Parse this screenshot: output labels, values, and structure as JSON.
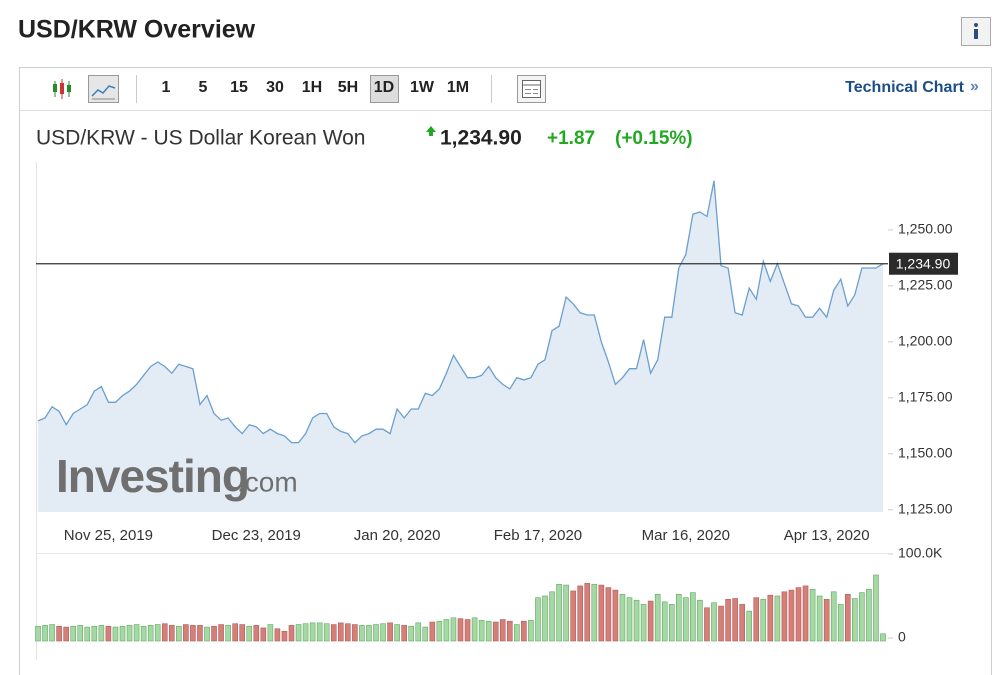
{
  "header": {
    "title": "USD/KRW Overview"
  },
  "toolbar": {
    "intervals": [
      "1",
      "5",
      "15",
      "30",
      "1H",
      "5H",
      "1D",
      "1W",
      "1M"
    ],
    "selected": "1D",
    "link": "Technical Chart",
    "link_arrow": "»"
  },
  "quote": {
    "name": "USD/KRW - US Dollar Korean Won",
    "price": "1,234.90",
    "change": "+1.87",
    "change_pct": "(+0.15%)"
  },
  "watermark": {
    "brand": "Investing",
    "suffix": ".com"
  },
  "chart_data": [
    {
      "type": "area",
      "color": "#6a9fd0",
      "fill": "#e3ecf4",
      "categories": [
        null,
        null,
        null,
        null,
        null,
        null,
        null,
        null,
        null,
        null,
        "Nov 25, 2019",
        null,
        null,
        null,
        null,
        null,
        null,
        null,
        null,
        null,
        null,
        null,
        null,
        null,
        null,
        null,
        null,
        null,
        null,
        null,
        null,
        "Dec 23, 2019",
        null,
        null,
        null,
        null,
        null,
        null,
        null,
        null,
        null,
        null,
        null,
        null,
        null,
        null,
        null,
        null,
        null,
        null,
        null,
        "Jan 20, 2020",
        null,
        null,
        null,
        null,
        null,
        null,
        null,
        null,
        null,
        null,
        null,
        null,
        null,
        null,
        null,
        null,
        null,
        null,
        null,
        "Feb 17, 2020",
        null,
        null,
        null,
        null,
        null,
        null,
        null,
        null,
        null,
        null,
        null,
        null,
        null,
        null,
        null,
        null,
        null,
        null,
        null,
        null,
        "Mar 16, 2020",
        null,
        null,
        null,
        null,
        null,
        null,
        null,
        null,
        null,
        null,
        null,
        null,
        null,
        null,
        null,
        null,
        null,
        null,
        null,
        "Apr 13, 2020",
        null,
        null,
        null,
        null,
        null,
        null,
        null,
        null
      ],
      "values": [
        1164.7,
        1166,
        1171,
        1169,
        1163,
        1168,
        1170,
        1172,
        1178,
        1180,
        1173,
        1173,
        1176,
        1178,
        1181,
        1185,
        1189,
        1191,
        1189,
        1186,
        1190,
        1189,
        1188,
        1172,
        1176,
        1168,
        1165,
        1166,
        1162,
        1159,
        1163,
        1162,
        1159,
        1161,
        1159,
        1158,
        1155,
        1155,
        1159,
        1166,
        1168,
        1168,
        1162,
        1160,
        1159,
        1155,
        1158,
        1159,
        1161,
        1161,
        1159,
        1170,
        1166,
        1170,
        1170,
        1177,
        1176,
        1179,
        1186,
        1194,
        1189,
        1184,
        1184,
        1185,
        1189,
        1184,
        1181,
        1179,
        1184,
        1183,
        1184,
        1190,
        1192,
        1205,
        1207,
        1220,
        1217,
        1213,
        1212,
        1212,
        1200,
        1191,
        1181,
        1184,
        1188,
        1188,
        1201,
        1186,
        1192,
        1211,
        1211,
        1233,
        1239,
        1257,
        1258,
        1256,
        1272,
        1234,
        1233,
        1213,
        1212,
        1224,
        1219,
        1236,
        1227,
        1235,
        1226,
        1217,
        1216,
        1211,
        1211,
        1215,
        1211,
        1223,
        1228,
        1216,
        1221,
        1233,
        1233,
        1233,
        1234.9
      ],
      "ylim": [
        1124,
        1279
      ],
      "yticks": [
        {
          "value": 1125,
          "label": "1,125.00"
        },
        {
          "value": 1150,
          "label": "1,150.00"
        },
        {
          "value": 1175,
          "label": "1,175.00"
        },
        {
          "value": 1200,
          "label": "1,200.00"
        },
        {
          "value": 1225,
          "label": "1,225.00"
        },
        {
          "value": 1250,
          "label": "1,250.00"
        }
      ],
      "last_price": {
        "value": 1234.9,
        "label": "1,234.90"
      }
    },
    {
      "type": "bar",
      "up_color": "#a6d8a6",
      "down_color": "#d47f7a",
      "values": [
        14,
        15,
        16,
        14,
        13,
        14,
        15,
        13,
        14,
        15,
        14,
        13,
        14,
        15,
        16,
        14,
        15,
        16,
        17,
        15,
        14,
        16,
        15,
        15,
        13,
        14,
        16,
        15,
        17,
        16,
        14,
        15,
        12,
        16,
        11,
        8,
        15,
        16,
        17,
        18,
        18,
        17,
        16,
        18,
        17,
        16,
        15,
        15,
        16,
        17,
        18,
        16,
        15,
        14,
        18,
        13,
        19,
        20,
        22,
        24,
        23,
        22,
        24,
        21,
        20,
        19,
        22,
        20,
        16,
        20,
        21,
        48,
        50,
        55,
        64,
        63,
        56,
        62,
        65,
        64,
        63,
        60,
        57,
        52,
        48,
        45,
        40,
        44,
        52,
        43,
        40,
        52,
        48,
        54,
        45,
        36,
        42,
        38,
        46,
        47,
        40,
        32,
        48,
        46,
        51,
        50,
        55,
        57,
        60,
        62,
        58,
        50,
        46,
        55,
        40,
        52,
        47,
        54,
        58,
        75,
        5
      ],
      "ylim": [
        0,
        100
      ],
      "yticks": [
        0,
        {
          "value": 100,
          "label": "100.0K"
        }
      ]
    }
  ]
}
